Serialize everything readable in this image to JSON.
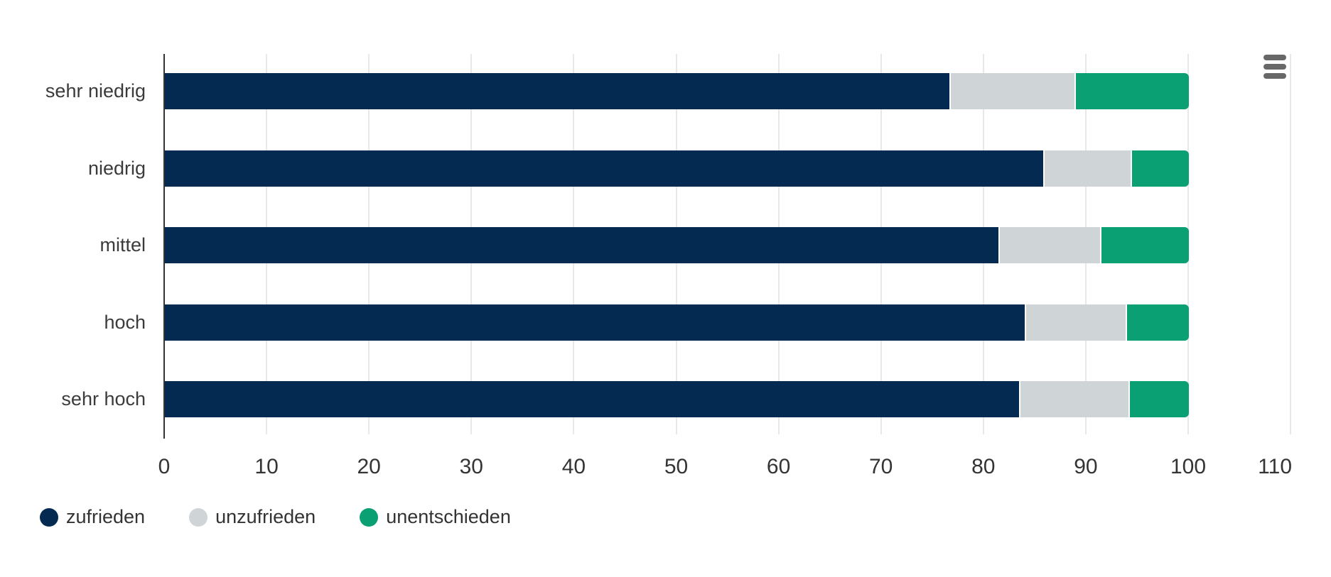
{
  "chart_data": {
    "type": "bar",
    "orientation": "horizontal",
    "stacked": true,
    "title": "",
    "categories": [
      "sehr niedrig",
      "niedrig",
      "mittel",
      "hoch",
      "sehr hoch"
    ],
    "series": [
      {
        "name": "zufrieden",
        "color": "#052a52",
        "values": [
          76.6,
          85.8,
          81.4,
          84.0,
          83.4
        ]
      },
      {
        "name": "unzufrieden",
        "color": "#cfd4d6",
        "values": [
          12.2,
          8.5,
          9.9,
          9.8,
          10.7
        ]
      },
      {
        "name": "unentschieden",
        "color": "#0aa073",
        "values": [
          11.2,
          5.7,
          8.7,
          6.2,
          5.9
        ]
      }
    ],
    "x_ticks": [
      0,
      10,
      20,
      30,
      40,
      50,
      60,
      70,
      80,
      90,
      100,
      110
    ],
    "xlim": [
      0,
      110
    ],
    "xlabel": "",
    "ylabel": "",
    "grid": true,
    "legend_position": "bottom"
  },
  "colors": {
    "axis_line": "#343434",
    "gridline": "#e8e8e8",
    "category_label": "#3b3b3b",
    "tick_label": "#343434",
    "legend_label": "#333333",
    "menu_icon": "#686868",
    "background": "#ffffff"
  },
  "menu": {
    "icon": "hamburger-menu-icon"
  }
}
